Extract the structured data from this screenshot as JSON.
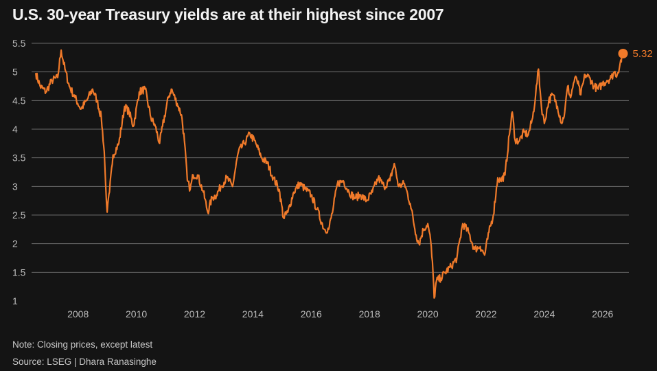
{
  "title": "U.S. 30-year Treasury yields are at their highest since 2007",
  "note": "Note: Closing prices, except latest",
  "source": "Source: LSEG | Dhara Ranasinghe",
  "chart_data": {
    "type": "line",
    "title": "U.S. 30-year Treasury yields are at their highest since 2007",
    "xlabel": "",
    "ylabel": "",
    "xlim": [
      2006.5,
      2026.9
    ],
    "ylim": [
      1,
      5.5
    ],
    "yticks": [
      1,
      1.5,
      2,
      2.5,
      3,
      3.5,
      4,
      4.5,
      5,
      5.5
    ],
    "ytick_labels": [
      "1",
      "1.5",
      "2",
      "2.5",
      "3",
      "3.5",
      "4",
      "4.5",
      "5",
      "5.5"
    ],
    "xticks": [
      2008,
      2010,
      2012,
      2014,
      2016,
      2018,
      2020,
      2022,
      2024,
      2026
    ],
    "xtick_labels": [
      "2008",
      "2010",
      "2012",
      "2014",
      "2016",
      "2018",
      "2020",
      "2022",
      "2024",
      "2026"
    ],
    "grid": "horizontal",
    "line_color": "#f07a2a",
    "series": [
      {
        "x": [
          2006.55,
          2006.7,
          2006.9,
          2007.1,
          2007.3,
          2007.42,
          2007.55,
          2007.7,
          2007.9,
          2008.1,
          2008.3,
          2008.5,
          2008.65,
          2008.8,
          2008.9,
          2008.95,
          2009.0,
          2009.08,
          2009.2,
          2009.4,
          2009.6,
          2009.75,
          2009.9,
          2010.1,
          2010.3,
          2010.5,
          2010.65,
          2010.8,
          2010.9,
          2011.1,
          2011.2,
          2011.4,
          2011.55,
          2011.65,
          2011.75,
          2011.85,
          2011.95,
          2012.1,
          2012.3,
          2012.45,
          2012.6,
          2012.75,
          2012.9,
          2013.1,
          2013.3,
          2013.5,
          2013.7,
          2013.9,
          2014.1,
          2014.3,
          2014.5,
          2014.7,
          2014.9,
          2015.05,
          2015.2,
          2015.4,
          2015.6,
          2015.8,
          2016.0,
          2016.2,
          2016.45,
          2016.6,
          2016.75,
          2016.9,
          2017.1,
          2017.3,
          2017.5,
          2017.7,
          2017.9,
          2018.1,
          2018.3,
          2018.5,
          2018.7,
          2018.85,
          2019.0,
          2019.2,
          2019.4,
          2019.6,
          2019.7,
          2019.85,
          2020.0,
          2020.1,
          2020.18,
          2020.22,
          2020.3,
          2020.45,
          2020.6,
          2020.8,
          2021.0,
          2021.2,
          2021.4,
          2021.6,
          2021.8,
          2021.95,
          2022.1,
          2022.25,
          2022.4,
          2022.5,
          2022.65,
          2022.8,
          2022.9,
          2023.0,
          2023.15,
          2023.3,
          2023.45,
          2023.6,
          2023.7,
          2023.8,
          2023.9,
          2024.0,
          2024.15,
          2024.3,
          2024.45,
          2024.6,
          2024.7,
          2024.8,
          2024.9,
          2025.0,
          2025.1,
          2025.25,
          2025.4,
          2025.55,
          2025.7,
          2025.85,
          2026.0,
          2026.15,
          2026.3,
          2026.4,
          2026.5,
          2026.6,
          2026.7
        ],
        "values": [
          4.98,
          4.75,
          4.65,
          4.85,
          4.9,
          5.38,
          5.05,
          4.75,
          4.55,
          4.35,
          4.5,
          4.7,
          4.5,
          4.2,
          3.6,
          3.0,
          2.55,
          2.9,
          3.55,
          3.75,
          4.4,
          4.3,
          4.05,
          4.65,
          4.7,
          4.2,
          4.05,
          3.75,
          4.05,
          4.55,
          4.7,
          4.45,
          4.25,
          3.8,
          3.1,
          2.95,
          3.2,
          3.2,
          2.9,
          2.55,
          2.8,
          2.85,
          3.0,
          3.15,
          3.0,
          3.6,
          3.75,
          3.92,
          3.75,
          3.5,
          3.4,
          3.15,
          2.95,
          2.45,
          2.55,
          2.9,
          3.05,
          2.95,
          2.85,
          2.6,
          2.25,
          2.25,
          2.6,
          3.05,
          3.1,
          2.9,
          2.8,
          2.85,
          2.75,
          2.9,
          3.15,
          3.0,
          3.1,
          3.4,
          3.0,
          3.05,
          2.7,
          2.15,
          2.0,
          2.25,
          2.35,
          2.05,
          1.5,
          1.05,
          1.35,
          1.4,
          1.5,
          1.6,
          1.75,
          2.35,
          2.2,
          1.9,
          1.95,
          1.8,
          2.2,
          2.5,
          3.15,
          3.1,
          3.2,
          3.9,
          4.3,
          3.8,
          3.8,
          3.95,
          3.9,
          4.2,
          4.6,
          5.05,
          4.4,
          4.1,
          4.5,
          4.6,
          4.4,
          4.1,
          4.3,
          4.75,
          4.55,
          4.8,
          4.9,
          4.6,
          4.95,
          4.9,
          4.75,
          4.7,
          4.8,
          4.85,
          4.9,
          5.0,
          4.95,
          5.15,
          5.32
        ]
      }
    ],
    "end_label": "5.32"
  }
}
